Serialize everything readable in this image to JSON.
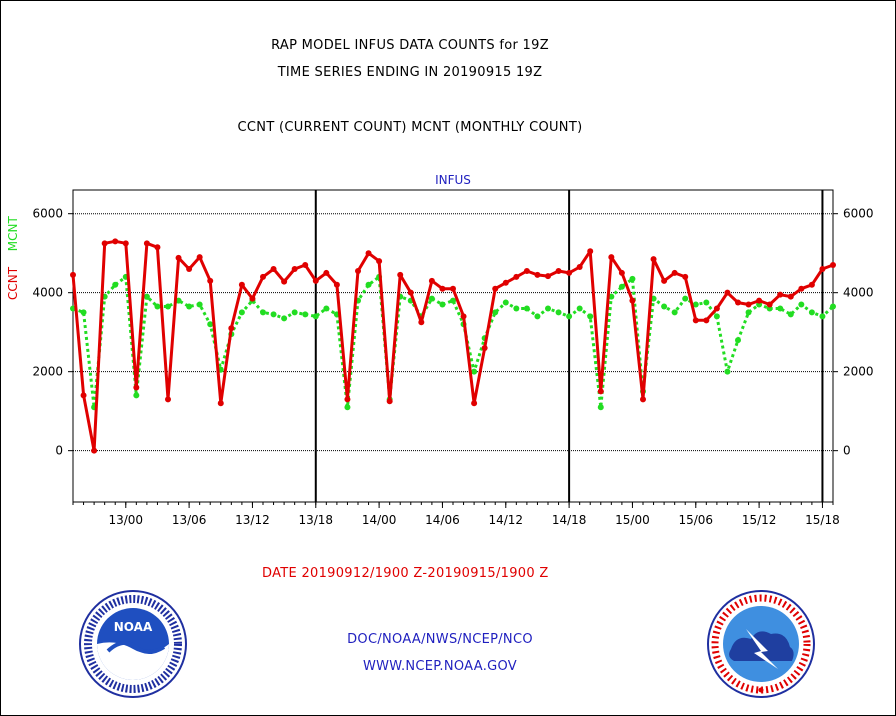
{
  "title_lines": [
    "RAP MODEL INFUS DATA COUNTS for 19Z",
    "TIME SERIES ENDING IN 20190915 19Z",
    "CCNT (CURRENT COUNT) MCNT (MONTHLY COUNT)"
  ],
  "y_axis_label": {
    "ccnt": "CCNT",
    "mcnt": "MCNT"
  },
  "footer": {
    "date_range": "DATE 20190912/1900 Z-20190915/1900 Z",
    "org": "DOC/NOAA/NWS/NCEP/NCO",
    "url": "WWW.NCEP.NOAA.GOV"
  },
  "logos": {
    "left": "NOAA",
    "right": "National Weather Service"
  },
  "colors": {
    "ccnt": "#e00000",
    "mcnt": "#22dd22",
    "axis": "#000000",
    "blue_text": "#1f1fbf"
  },
  "chart_data": {
    "type": "line",
    "title": "INFUS",
    "x_unit": "hours since 12/19Z",
    "xlim": [
      0,
      72
    ],
    "ylim": [
      -1300,
      6600
    ],
    "ytick_values": [
      0,
      2000,
      4000,
      6000
    ],
    "yticks": [
      "0",
      "2000",
      "4000",
      "6000"
    ],
    "grid": true,
    "xtick_positions": [
      5,
      11,
      17,
      23,
      29,
      35,
      41,
      47,
      53,
      59,
      65,
      71
    ],
    "xticks": [
      "13/00",
      "13/06",
      "13/12",
      "13/18",
      "14/00",
      "14/06",
      "14/12",
      "14/18",
      "15/00",
      "15/06",
      "15/12",
      "15/18"
    ],
    "day_markers": [
      23,
      47,
      71
    ],
    "series": [
      {
        "name": "CCNT",
        "color": "#e00000",
        "x": [
          0,
          1,
          2,
          3,
          4,
          5,
          6,
          7,
          8,
          9,
          10,
          11,
          12,
          13,
          14,
          15,
          16,
          17,
          18,
          19,
          20,
          21,
          22,
          23,
          24,
          25,
          26,
          27,
          28,
          29,
          30,
          31,
          32,
          33,
          34,
          35,
          36,
          37,
          38,
          39,
          40,
          41,
          42,
          43,
          44,
          45,
          46,
          47,
          48,
          49,
          50,
          51,
          52,
          53,
          54,
          55,
          56,
          57,
          58,
          59,
          60,
          61,
          62,
          63,
          64,
          65,
          66,
          67,
          68,
          69,
          70,
          71,
          72
        ],
        "values": [
          4450,
          1400,
          0,
          5250,
          5300,
          5250,
          1600,
          5250,
          5150,
          1300,
          4880,
          4600,
          4900,
          4300,
          1200,
          3100,
          4200,
          3850,
          4400,
          4600,
          4280,
          4600,
          4700,
          4300,
          4500,
          4200,
          1300,
          4550,
          5000,
          4800,
          1250,
          4450,
          4000,
          3250,
          4300,
          4100,
          4100,
          3400,
          1200,
          2600,
          4100,
          4250,
          4400,
          4550,
          4450,
          4420,
          4550,
          4500,
          4650,
          5050,
          1500,
          4900,
          4500,
          3800,
          1300,
          4850,
          4300,
          4500,
          4400,
          3300,
          3300,
          3600,
          4000,
          3750,
          3700,
          3800,
          3700,
          3950,
          3900,
          4100,
          4200,
          4600,
          4700
        ]
      },
      {
        "name": "MCNT",
        "color": "#22dd22",
        "x": [
          0,
          1,
          2,
          3,
          4,
          5,
          6,
          7,
          8,
          9,
          10,
          11,
          12,
          13,
          14,
          15,
          16,
          17,
          18,
          19,
          20,
          21,
          22,
          23,
          24,
          25,
          26,
          27,
          28,
          29,
          30,
          31,
          32,
          33,
          34,
          35,
          36,
          37,
          38,
          39,
          40,
          41,
          42,
          43,
          44,
          45,
          46,
          47,
          48,
          49,
          50,
          51,
          52,
          53,
          54,
          55,
          56,
          57,
          58,
          59,
          60,
          61,
          62,
          63,
          64,
          65,
          66,
          67,
          68,
          69,
          70,
          71,
          72
        ],
        "values": [
          3600,
          3500,
          1100,
          3900,
          4200,
          4400,
          1400,
          3900,
          3650,
          3650,
          3800,
          3650,
          3700,
          3200,
          2050,
          2950,
          3500,
          3800,
          3500,
          3450,
          3350,
          3500,
          3450,
          3400,
          3600,
          3450,
          1100,
          3800,
          4200,
          4400,
          1300,
          3900,
          3800,
          3400,
          3850,
          3700,
          3800,
          3200,
          2000,
          2850,
          3500,
          3750,
          3600,
          3600,
          3400,
          3600,
          3500,
          3400,
          3600,
          3400,
          1100,
          3900,
          4150,
          4350,
          1500,
          3850,
          3650,
          3500,
          3850,
          3700,
          3750,
          3400,
          2000,
          2800,
          3500,
          3700,
          3600,
          3600,
          3450,
          3700,
          3500,
          3400,
          3650
        ]
      }
    ]
  }
}
